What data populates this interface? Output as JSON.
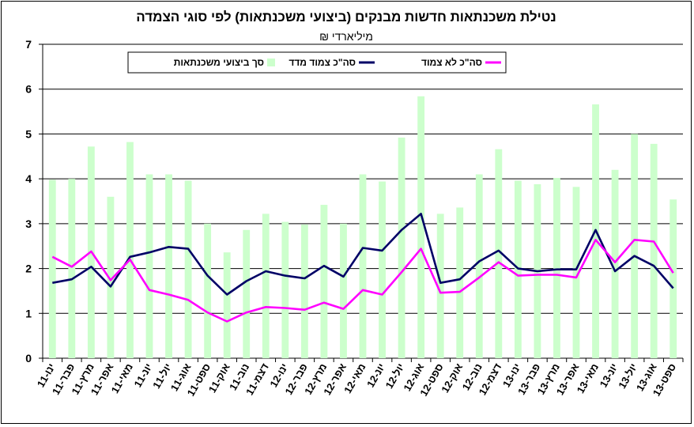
{
  "chart_data": {
    "type": "bar",
    "title": "נטילת משכנתאות חדשות מבנקים (ביצועי משכנתאות) לפי סוגי הצמדה",
    "subtitle": "מיליארדי ₪",
    "ylim": [
      0,
      7
    ],
    "yticks": [
      "0",
      "1",
      "2",
      "3",
      "4",
      "5",
      "6",
      "7"
    ],
    "grid": true,
    "legend_position": "top",
    "categories": [
      "ינו-11",
      "פבר-11",
      "מרץ-11",
      "אפר-11",
      "מאי-11",
      "יונ-11",
      "יול-11",
      "אוג-11",
      "ספט-11",
      "אוק-11",
      "נוב-11",
      "דצמ-11",
      "ינו-12",
      "פבר-12",
      "מרץ-12",
      "אפר-12",
      "מאי-12",
      "יונ-12",
      "יול-12",
      "אוג-12",
      "ספט-12",
      "אוק-12",
      "נוב-12",
      "דצמ-12",
      "ינו-13",
      "פבר-13",
      "מרץ-13",
      "אפר-13",
      "מאי-13",
      "יונ-13",
      "יול-13",
      "אוג-13",
      "ספט-13"
    ],
    "series": [
      {
        "name": "סך ביצועי משכנתאות",
        "kind": "bar",
        "color": "#ccffcc",
        "values": [
          3.98,
          4.0,
          4.72,
          3.6,
          4.82,
          4.1,
          4.1,
          3.96,
          3.0,
          2.36,
          2.86,
          3.22,
          3.04,
          2.98,
          3.42,
          3.0,
          4.1,
          3.94,
          4.92,
          5.84,
          3.22,
          3.36,
          4.1,
          4.66,
          3.96,
          3.88,
          4.02,
          3.82,
          5.66,
          4.2,
          5.0,
          4.78,
          3.54
        ]
      },
      {
        "name": "סה\"כ צמוד מדד",
        "kind": "line",
        "color": "#000066",
        "values": [
          1.68,
          1.76,
          2.04,
          1.6,
          2.26,
          2.36,
          2.48,
          2.44,
          1.84,
          1.42,
          1.72,
          1.94,
          1.84,
          1.78,
          2.06,
          1.82,
          2.46,
          2.4,
          2.86,
          3.22,
          1.68,
          1.76,
          2.16,
          2.4,
          2.0,
          1.94,
          1.98,
          1.98,
          2.86,
          1.94,
          2.28,
          2.06,
          1.56
        ]
      },
      {
        "name": "סה\"כ לא צמוד",
        "kind": "line",
        "color": "#ff00ff",
        "values": [
          2.26,
          2.04,
          2.38,
          1.74,
          2.2,
          1.52,
          1.42,
          1.3,
          1.02,
          0.82,
          1.02,
          1.14,
          1.12,
          1.08,
          1.24,
          1.1,
          1.52,
          1.42,
          1.92,
          2.44,
          1.46,
          1.48,
          1.8,
          2.14,
          1.84,
          1.86,
          1.86,
          1.8,
          2.64,
          2.14,
          2.64,
          2.6,
          1.9
        ]
      }
    ]
  }
}
